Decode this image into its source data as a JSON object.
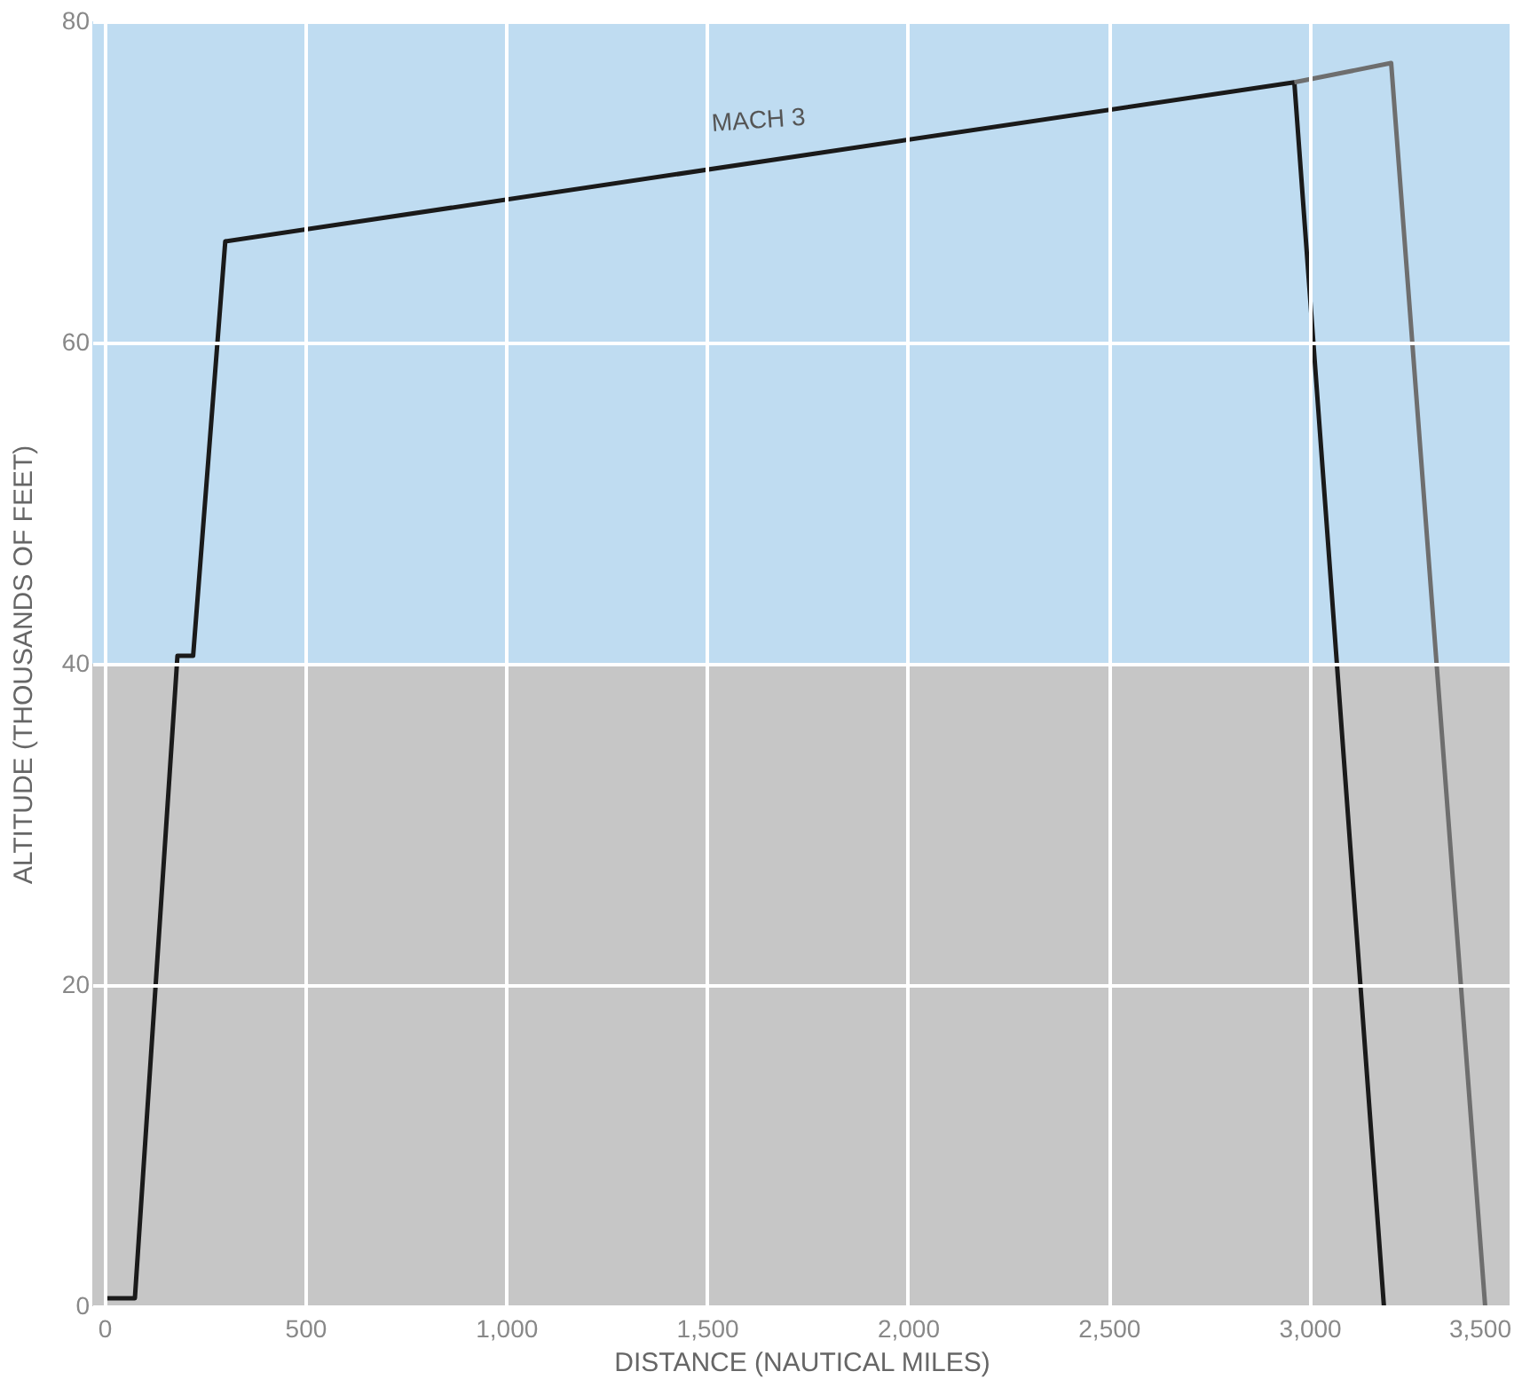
{
  "chart_data": {
    "type": "line",
    "xlabel": "DISTANCE (NAUTICAL MILES)",
    "ylabel": "ALTITUDE (THOUSANDS OF FEET)",
    "series": [
      {
        "color": "#1a1a1a",
        "x": [
          0,
          76,
          182,
          221,
          301,
          2962,
          3185
        ],
        "values": [
          0.5,
          0.5,
          40.5,
          40.5,
          66.3,
          76.2,
          0
        ]
      },
      {
        "color": "#6e6e6e",
        "x": [
          2962,
          3203,
          3437
        ],
        "values": [
          76.2,
          77.4,
          0
        ]
      }
    ],
    "annotations": [
      "MACH 3"
    ],
    "bands": [
      {
        "axis": "y",
        "from": 0,
        "to": 40,
        "color": "#c6c6c6"
      },
      {
        "axis": "y",
        "from": 40,
        "to": 80,
        "color": "#bfdcf1"
      }
    ],
    "xlim": [
      -30,
      3500
    ],
    "ylim": [
      0,
      80
    ],
    "xticks": [
      0,
      500,
      {
        "value": 1000,
        "label": "1,000"
      },
      {
        "value": 1500,
        "label": "1,500"
      },
      {
        "value": 2000,
        "label": "2,000"
      },
      {
        "value": 2500,
        "label": "2,500"
      },
      {
        "value": 3000,
        "label": "3,000"
      },
      {
        "value": 3500,
        "label": "3,500"
      }
    ],
    "yticks": [
      0,
      20,
      40,
      60,
      80
    ],
    "grid": true,
    "marker": "none",
    "line_style": "solid"
  }
}
